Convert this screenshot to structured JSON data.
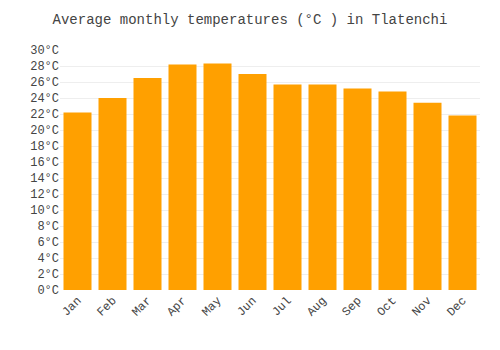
{
  "chart_data": {
    "type": "bar",
    "title": "Average monthly temperatures (°C ) in Tlatenchi",
    "categories": [
      "Jan",
      "Feb",
      "Mar",
      "Apr",
      "May",
      "Jun",
      "Jul",
      "Aug",
      "Sep",
      "Oct",
      "Nov",
      "Dec"
    ],
    "values": [
      22.2,
      24.0,
      26.5,
      28.2,
      28.3,
      27.0,
      25.7,
      25.7,
      25.2,
      24.8,
      23.4,
      21.8
    ],
    "color": "#FFA000",
    "ylim": [
      0,
      30
    ],
    "yticks": [
      {
        "value": 0,
        "label": "0°C"
      },
      {
        "value": 2,
        "label": "2°C"
      },
      {
        "value": 4,
        "label": "4°C"
      },
      {
        "value": 6,
        "label": "6°C"
      },
      {
        "value": 8,
        "label": "8°C"
      },
      {
        "value": 10,
        "label": "10°C"
      },
      {
        "value": 12,
        "label": "12°C"
      },
      {
        "value": 14,
        "label": "14°C"
      },
      {
        "value": 16,
        "label": "16°C"
      },
      {
        "value": 18,
        "label": "18°C"
      },
      {
        "value": 20,
        "label": "20°C"
      },
      {
        "value": 22,
        "label": "22°C"
      },
      {
        "value": 24,
        "label": "24°C"
      },
      {
        "value": 26,
        "label": "26°C"
      },
      {
        "value": 28,
        "label": "28°C"
      },
      {
        "value": 30,
        "label": "30°C"
      }
    ],
    "grid": true
  }
}
